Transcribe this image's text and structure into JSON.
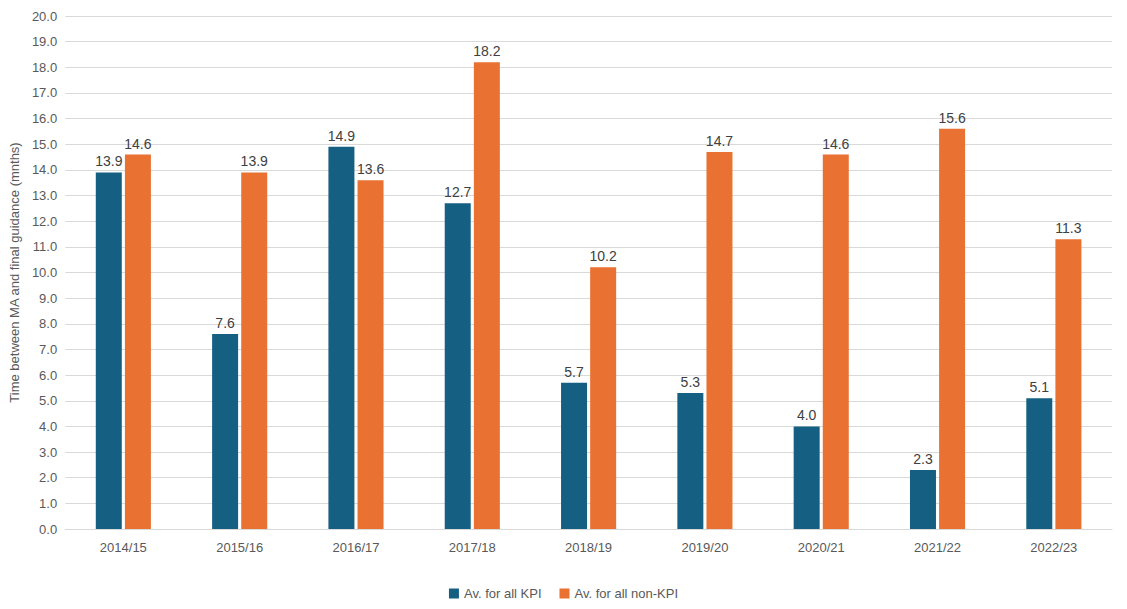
{
  "chart_data": {
    "type": "bar",
    "y_label": "Time between MA and final guidance (mnths)",
    "categories": [
      "2014/15",
      "2015/16",
      "2016/17",
      "2017/18",
      "2018/19",
      "2019/20",
      "2020/21",
      "2021/22",
      "2022/23"
    ],
    "series": [
      {
        "name": "Av. for all KPI",
        "color": "#156082",
        "values": [
          13.9,
          7.6,
          14.9,
          12.7,
          5.7,
          5.3,
          4.0,
          2.3,
          5.1
        ],
        "value_labels": [
          "13.9",
          "7.6",
          "14.9",
          "12.7",
          "5.7",
          "5.3",
          "4.0",
          "2.3",
          "5.1"
        ]
      },
      {
        "name": "Av. for all non-KPI",
        "color": "#E97132",
        "values": [
          14.6,
          13.9,
          13.6,
          18.2,
          10.2,
          14.7,
          14.6,
          15.6,
          11.3
        ],
        "value_labels": [
          "14.6",
          "13.9",
          "13.6",
          "18.2",
          "10.2",
          "14.7",
          "14.6",
          "15.6",
          "11.3"
        ]
      }
    ],
    "ylim": [
      0,
      20
    ],
    "yticks": [
      {
        "value": 0,
        "label": "0.0"
      },
      {
        "value": 1,
        "label": "1.0"
      },
      {
        "value": 2,
        "label": "2.0"
      },
      {
        "value": 3,
        "label": "3.0"
      },
      {
        "value": 4,
        "label": "4.0"
      },
      {
        "value": 5,
        "label": "5.0"
      },
      {
        "value": 6,
        "label": "6.0"
      },
      {
        "value": 7,
        "label": "7.0"
      },
      {
        "value": 8,
        "label": "8.0"
      },
      {
        "value": 9,
        "label": "9.0"
      },
      {
        "value": 10,
        "label": "10.0"
      },
      {
        "value": 11,
        "label": "11.0"
      },
      {
        "value": 12,
        "label": "12.0"
      },
      {
        "value": 13,
        "label": "13.0"
      },
      {
        "value": 14,
        "label": "14.0"
      },
      {
        "value": 15,
        "label": "15.0"
      },
      {
        "value": 16,
        "label": "16.0"
      },
      {
        "value": 17,
        "label": "17.0"
      },
      {
        "value": 18,
        "label": "18.0"
      },
      {
        "value": 19,
        "label": "19.0"
      },
      {
        "value": 20,
        "label": "20.0"
      }
    ],
    "grid": true,
    "legend": "bottom",
    "data_labels": true
  }
}
